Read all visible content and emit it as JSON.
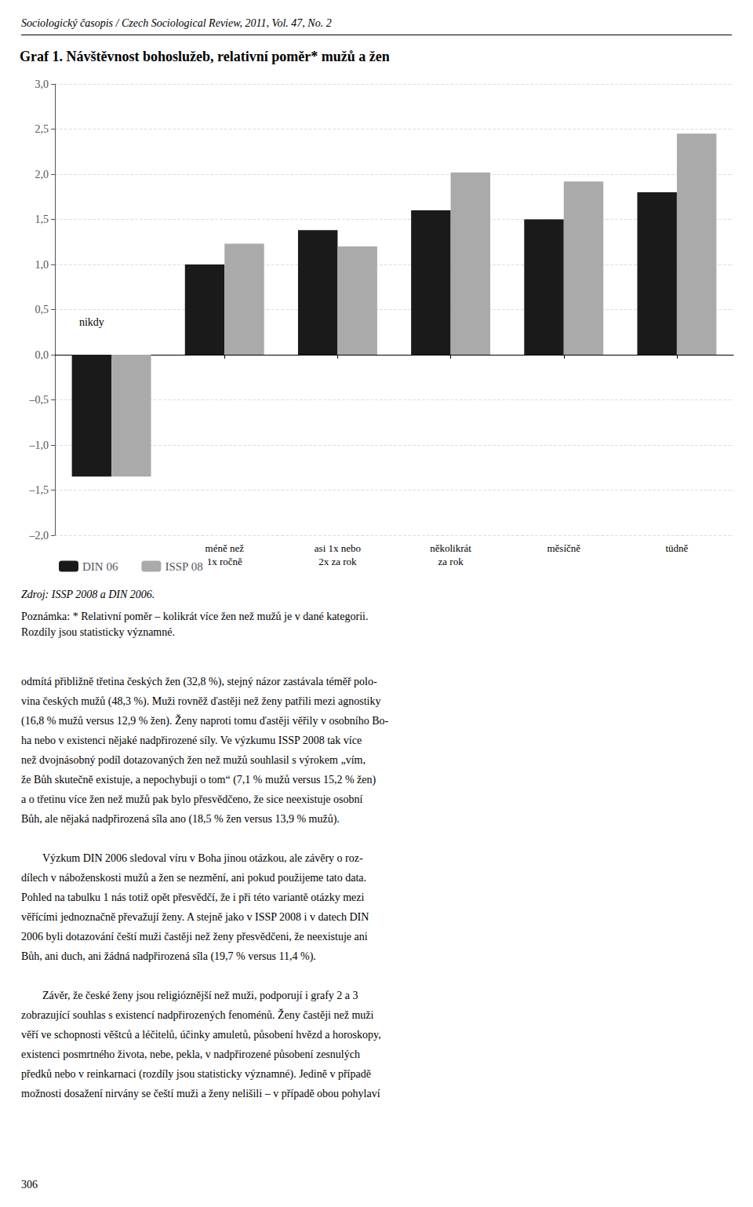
{
  "chart_data": {
    "type": "bar",
    "title": "Graf 1. Návštěvnost bohoslužeb, relativní poměr* mužů a žen",
    "categories": [
      null,
      "méně než\n1x ročně",
      "asi 1x nebo\n2x za rok",
      "několikrát\nza rok",
      "měsíčně",
      "tüdně"
    ],
    "series": [
      {
        "name": "DIN 06",
        "color": "#1a1a1a",
        "values": [
          -1.35,
          1.0,
          1.38,
          1.6,
          1.5,
          1.8
        ]
      },
      {
        "name": "ISSP 08",
        "color": "#aaaaaa",
        "values": [
          -1.35,
          1.23,
          1.2,
          2.02,
          1.92,
          2.45
        ]
      }
    ],
    "ylim": [
      -2.0,
      3.0
    ],
    "yticks": [
      {
        "value": -2.0,
        "label": "–2,0"
      },
      {
        "value": -1.5,
        "label": "–1,5"
      },
      {
        "value": -1.0,
        "label": "–1,0"
      },
      {
        "value": -0.5,
        "label": "–0,5"
      },
      {
        "value": 0.0,
        "label": "0,0"
      },
      {
        "value": 0.5,
        "label": "0,5"
      },
      {
        "value": 1.0,
        "label": "1,0"
      },
      {
        "value": 1.5,
        "label": "1,5"
      },
      {
        "value": 2.0,
        "label": "2,0"
      },
      {
        "value": 2.5,
        "label": "2,5"
      },
      {
        "value": 3.0,
        "label": "3,0"
      }
    ],
    "grid": true,
    "legend": "bottom left",
    "annotations": [
      {
        "text": "nikdy",
        "x": 0,
        "y": 0.3
      }
    ]
  },
  "header": "Sociologický časopis / Czech Sociological Review, 2011, Vol. 47, No. 2",
  "source": "Zdroj: ISSP 2008 a DIN 2006.",
  "notes": [
    "Poznámka: * Relativní poměr – kolikrát více žen než mužů je v dané kategorii.",
    "Rozdíly jsou statisticky významné."
  ],
  "body_paragraphs": [
    [
      "odmítá přibližně třetina českých žen (32,8 %), stejný názor zastávala téměř polo-",
      "vina českých mužů (48,3 %). Muži rovněž ďastěji než ženy patřili mezi agnostiky",
      "(16,8 % mužů versus 12,9 % žen). Ženy naproti tomu ďastěji věřily v osobního Bo-",
      "ha nebo v existenci nějaké nadpřirozené síly. Ve výzkumu ISSP 2008 tak více",
      "než dvojnásobný podíl dotazovaných žen než mužů souhlasil s výrokem „vím,",
      "že Bůh skutečně existuje, a nepochybuji o tom“ (7,1 % mužů versus 15,2 % žen)",
      "a o třetinu více žen než mužů pak bylo přesvědčeno, že sice neexistuje osobní",
      "Bůh, ale nějaká nadpřirozená sîla ano (18,5 % žen versus 13,9 % mužů)."
    ],
    [
      "Výzkum DIN 2006 sledoval víru v Boha jinou otázkou, ale závěry o roz-",
      "dílech v náboženskosti mužů a žen se nezmění, ani pokud použijeme tato data.",
      "Pohled na tabulku 1 nás totiž opět přesvědčí, že i při této variantě otázky mezi",
      "věřícími jednoznačně převažují ženy. A stejně jako v ISSP 2008 i v datech DIN",
      "2006 byli dotazování čeští muži častěji než ženy přesvědčeni, že neexistuje ani",
      "Bůh, ani duch, ani žádná nadpřirozená sîla (19,7 % versus 11,4 %)."
    ],
    [
      "Závěr, že české ženy jsou religióznější než muži, podporují i grafy 2 a 3",
      "zobrazující souhlas s existencí nadpřirozených fenoménů. Ženy častěji než muži",
      "věří ve schopnosti věštců a léčitelů, účinky amuletů, působení hvězd a horoskopy,",
      "existenci posmrtného života, nebe, pekla, v nadpřirozené působení zesnulých",
      "předků nebo v reinkarnaci (rozdíly jsou statisticky významné). Jedině v případě",
      "možnosti dosažení nirvány se čeští muži a ženy nelišili – v případě obou pohylaví"
    ]
  ],
  "page_number": "306"
}
